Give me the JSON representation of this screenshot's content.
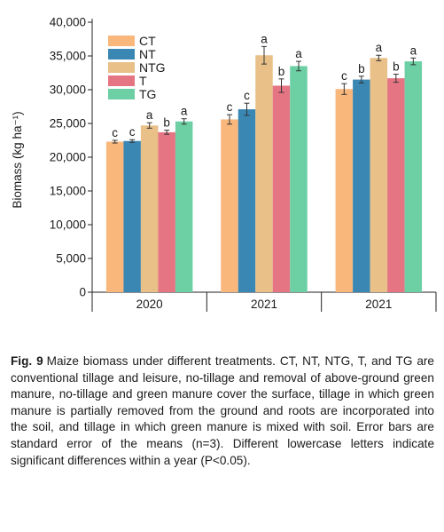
{
  "chart_data": {
    "type": "bar",
    "ylabel": "Biomass (kg ha⁻¹)",
    "ylim": [
      0,
      40000
    ],
    "yticks": [
      "0",
      "5,000",
      "10,000",
      "15,000",
      "20,000",
      "25,000",
      "30,000",
      "35,000",
      "40,000"
    ],
    "categories": [
      "2020",
      "2021",
      "2021"
    ],
    "legend_position": "top-left",
    "series": [
      {
        "name": "CT",
        "color": "#f9b77c",
        "values": [
          22300,
          25600,
          30100
        ],
        "errors": [
          200,
          700,
          800
        ],
        "letters": [
          "c",
          "c",
          "c"
        ]
      },
      {
        "name": "NT",
        "color": "#3a87b3",
        "values": [
          22400,
          27100,
          31500
        ],
        "errors": [
          200,
          900,
          500
        ],
        "letters": [
          "c",
          "c",
          "b"
        ]
      },
      {
        "name": "NTG",
        "color": "#e8c088",
        "values": [
          24700,
          35100,
          34700
        ],
        "errors": [
          400,
          1300,
          400
        ],
        "letters": [
          "a",
          "a",
          "a"
        ]
      },
      {
        "name": "T",
        "color": "#e57583",
        "values": [
          23700,
          30600,
          31700
        ],
        "errors": [
          300,
          1000,
          600
        ],
        "letters": [
          "b",
          "b",
          "b"
        ]
      },
      {
        "name": "TG",
        "color": "#6dcfa4",
        "values": [
          25300,
          33500,
          34200
        ],
        "errors": [
          400,
          700,
          500
        ],
        "letters": [
          "a",
          "a",
          "a"
        ]
      }
    ]
  },
  "caption": {
    "label": "Fig. 9",
    "text": "Maize biomass under different treatments. CT, NT, NTG, T, and TG are conventional tillage and leisure, no-tillage and removal of above-ground green manure, no-tillage and green manure cover the surface, tillage in which green manure is partially removed from the ground and roots are incorporated into the soil, and tillage in which green manure is mixed with soil. Error bars are standard error of the means (n=3). Different lowercase letters indicate significant differences within a year (P<0.05)."
  }
}
